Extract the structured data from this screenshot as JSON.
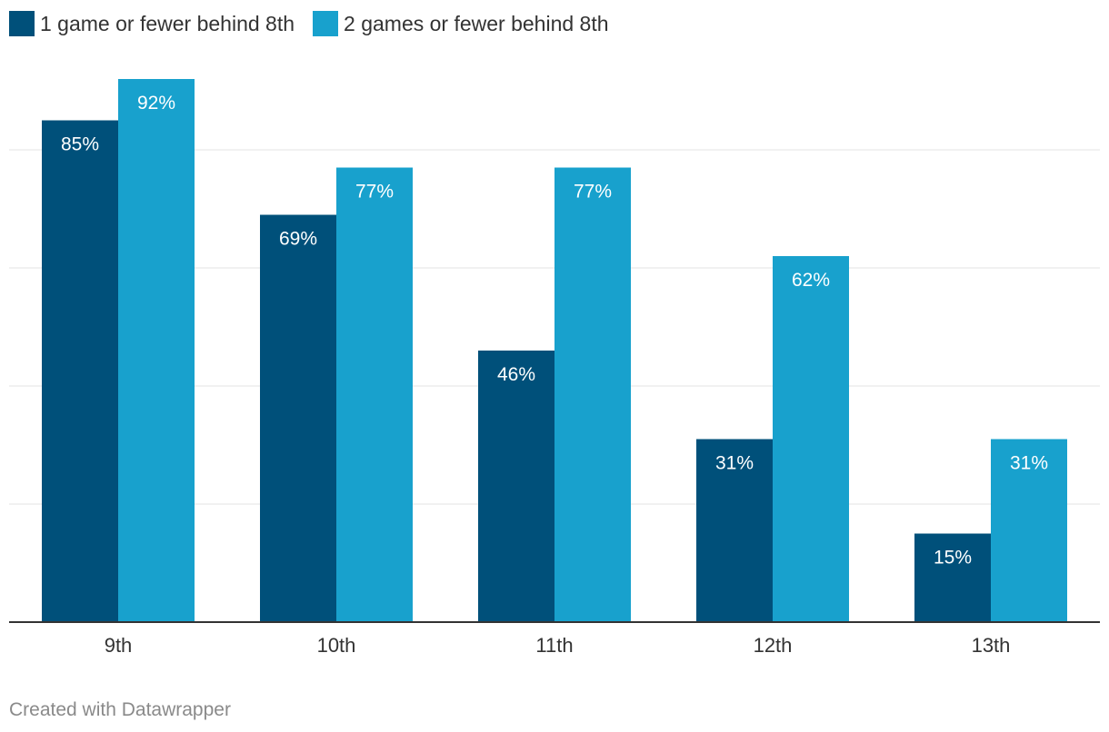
{
  "chart_data": {
    "type": "bar",
    "title": "",
    "xlabel": "",
    "ylabel": "",
    "ylim": [
      0,
      100
    ],
    "grid": true,
    "legend_position": "top-left",
    "categories": [
      "9th",
      "10th",
      "11th",
      "12th",
      "13th"
    ],
    "series": [
      {
        "name": "1 game or fewer behind 8th",
        "color": "#00507a",
        "values": [
          85,
          69,
          46,
          31,
          15
        ]
      },
      {
        "name": "2 games or fewer behind 8th",
        "color": "#18a1cd",
        "values": [
          92,
          77,
          77,
          62,
          31
        ]
      }
    ],
    "value_suffix": "%"
  },
  "legend": {
    "items": [
      {
        "label": "1 game or fewer behind 8th",
        "color": "#00507a"
      },
      {
        "label": "2 games or fewer behind 8th",
        "color": "#18a1cd"
      }
    ]
  },
  "credit": "Created with Datawrapper"
}
